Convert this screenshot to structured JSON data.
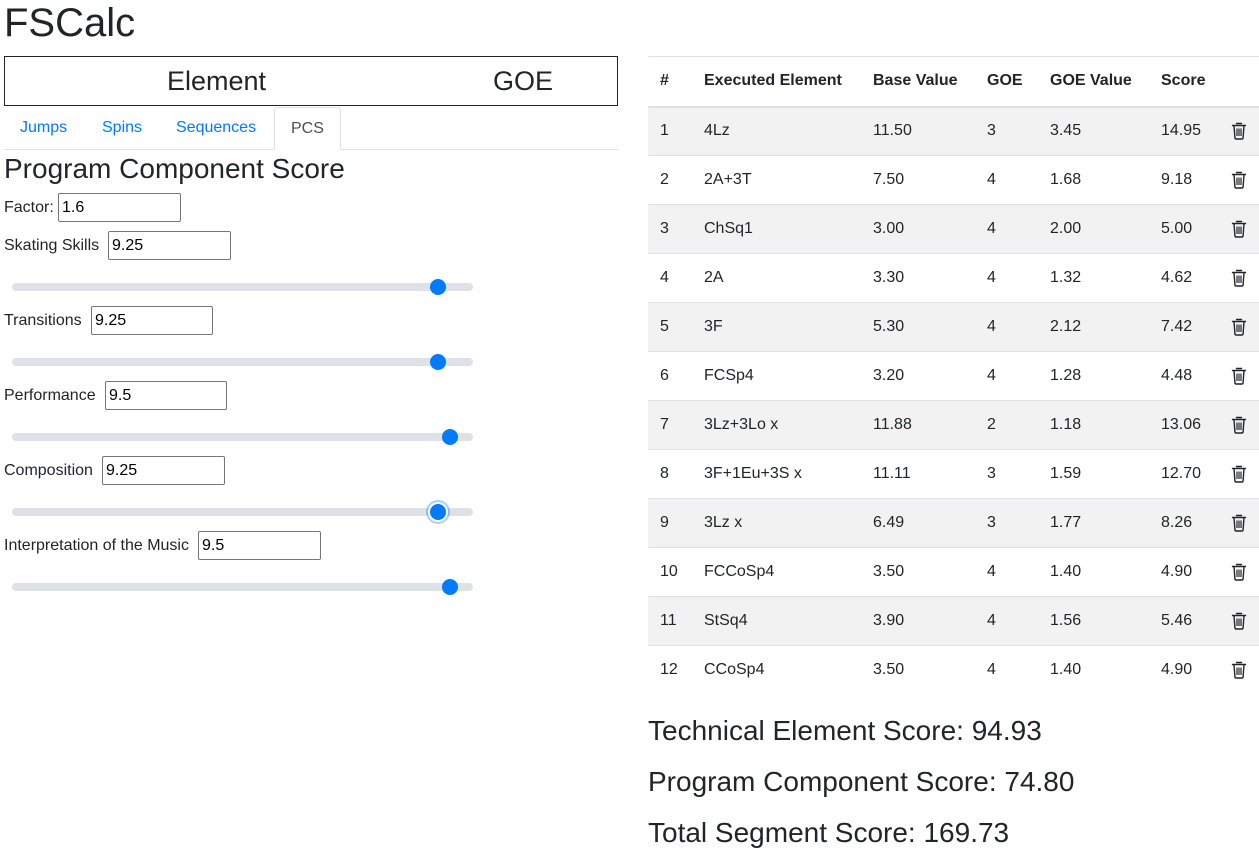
{
  "app": {
    "title": "FSCalc"
  },
  "element_header": {
    "element_label": "Element",
    "goe_label": "GOE"
  },
  "tabs": [
    {
      "label": "Jumps",
      "active": false
    },
    {
      "label": "Spins",
      "active": false
    },
    {
      "label": "Sequences",
      "active": false
    },
    {
      "label": "PCS",
      "active": true
    }
  ],
  "pcs": {
    "heading": "Program Component Score",
    "factor": {
      "label": "Factor:",
      "value": "1.6"
    },
    "components": [
      {
        "label": "Skating Skills",
        "value": "9.25",
        "slider_fraction": 0.925
      },
      {
        "label": "Transitions",
        "value": "9.25",
        "slider_fraction": 0.925
      },
      {
        "label": "Performance",
        "value": "9.5",
        "slider_fraction": 0.95
      },
      {
        "label": "Composition",
        "value": "9.25",
        "slider_fraction": 0.925
      },
      {
        "label": "Interpretation of the Music",
        "value": "9.5",
        "slider_fraction": 0.95
      }
    ]
  },
  "table": {
    "headers": [
      "#",
      "Executed Element",
      "Base Value",
      "GOE",
      "GOE Value",
      "Score"
    ],
    "rows": [
      [
        "1",
        "4Lz",
        "11.50",
        "3",
        "3.45",
        "14.95"
      ],
      [
        "2",
        "2A+3T",
        "7.50",
        "4",
        "1.68",
        "9.18"
      ],
      [
        "3",
        "ChSq1",
        "3.00",
        "4",
        "2.00",
        "5.00"
      ],
      [
        "4",
        "2A",
        "3.30",
        "4",
        "1.32",
        "4.62"
      ],
      [
        "5",
        "3F",
        "5.30",
        "4",
        "2.12",
        "7.42"
      ],
      [
        "6",
        "FCSp4",
        "3.20",
        "4",
        "1.28",
        "4.48"
      ],
      [
        "7",
        "3Lz+3Lo x",
        "11.88",
        "2",
        "1.18",
        "13.06"
      ],
      [
        "8",
        "3F+1Eu+3S x",
        "11.11",
        "3",
        "1.59",
        "12.70"
      ],
      [
        "9",
        "3Lz x",
        "6.49",
        "3",
        "1.77",
        "8.26"
      ],
      [
        "10",
        "FCCoSp4",
        "3.50",
        "4",
        "1.40",
        "4.90"
      ],
      [
        "11",
        "StSq4",
        "3.90",
        "4",
        "1.56",
        "5.46"
      ],
      [
        "12",
        "CCoSp4",
        "3.50",
        "4",
        "1.40",
        "4.90"
      ]
    ]
  },
  "summary": {
    "tes": "Technical Element Score: 94.93",
    "pcs": "Program Component Score: 74.80",
    "tss": "Total Segment Score: 169.73"
  },
  "colors": {
    "accent": "#007bff",
    "text": "#212529",
    "stripe": "#f2f2f2",
    "border": "#dee2e6"
  },
  "icons": {
    "delete": "trash-icon"
  }
}
